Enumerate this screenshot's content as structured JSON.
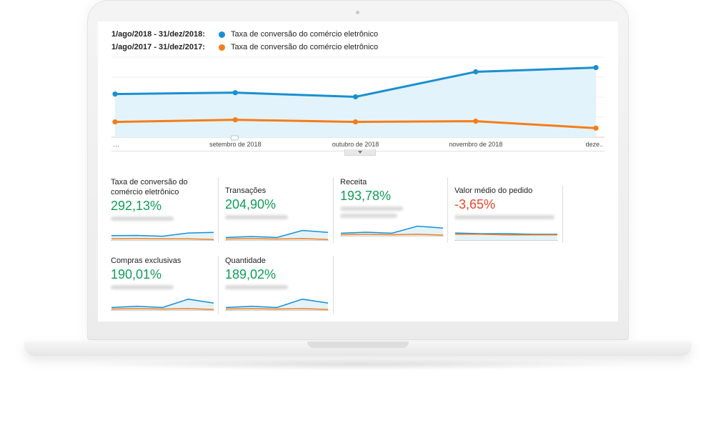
{
  "legend": {
    "current": {
      "date": "1/ago/2018 - 31/dez/2018:",
      "label": "Taxa de conversão do comércio eletrônico",
      "color": "#1a8fd1"
    },
    "previous": {
      "date": "1/ago/2017 - 31/dez/2017:",
      "label": "Taxa de conversão do comércio eletrônico",
      "color": "#f57d18"
    }
  },
  "chart_data": {
    "type": "line",
    "categories": [
      "…",
      "setembro de 2018",
      "outubro de 2018",
      "novembro de 2018",
      "deze.."
    ],
    "series": [
      {
        "name": "1/ago/2018 - 31/dez/2018",
        "values": [
          0.62,
          0.64,
          0.58,
          0.94,
          1.0
        ]
      },
      {
        "name": "1/ago/2017 - 31/dez/2017",
        "values": [
          0.22,
          0.25,
          0.22,
          0.23,
          0.13
        ]
      }
    ],
    "ylim": [
      0,
      1.15
    ],
    "xlabel": "",
    "ylabel": "",
    "grid": true
  },
  "metrics": [
    {
      "title": "Taxa de conversão do comércio eletrônico",
      "value": "292,13%",
      "trend": "pos",
      "spark_current": [
        0.35,
        0.36,
        0.3,
        0.55,
        0.6
      ],
      "spark_previous": [
        0.1,
        0.12,
        0.1,
        0.1,
        0.05
      ]
    },
    {
      "title": "Transações",
      "value": "204,90%",
      "trend": "pos",
      "spark_current": [
        0.2,
        0.28,
        0.2,
        0.75,
        0.6
      ],
      "spark_previous": [
        0.08,
        0.12,
        0.08,
        0.12,
        0.05
      ]
    },
    {
      "title": "Receita",
      "value": "193,78%",
      "trend": "pos",
      "spark_current": [
        0.2,
        0.28,
        0.2,
        0.75,
        0.6
      ],
      "spark_previous": [
        0.08,
        0.12,
        0.08,
        0.12,
        0.05
      ]
    },
    {
      "title": "Valor médio do pedido",
      "value": "-3,65%",
      "trend": "neg",
      "spark_current": [
        0.55,
        0.5,
        0.5,
        0.45,
        0.45
      ],
      "spark_previous": [
        0.45,
        0.45,
        0.4,
        0.4,
        0.4
      ]
    },
    {
      "title": "Compras exclusivas",
      "value": "190,01%",
      "trend": "pos",
      "spark_current": [
        0.2,
        0.3,
        0.2,
        0.85,
        0.55
      ],
      "spark_previous": [
        0.08,
        0.12,
        0.08,
        0.12,
        0.05
      ]
    },
    {
      "title": "Quantidade",
      "value": "189,02%",
      "trend": "pos",
      "spark_current": [
        0.2,
        0.3,
        0.2,
        0.85,
        0.55
      ],
      "spark_previous": [
        0.08,
        0.12,
        0.08,
        0.12,
        0.05
      ]
    }
  ]
}
